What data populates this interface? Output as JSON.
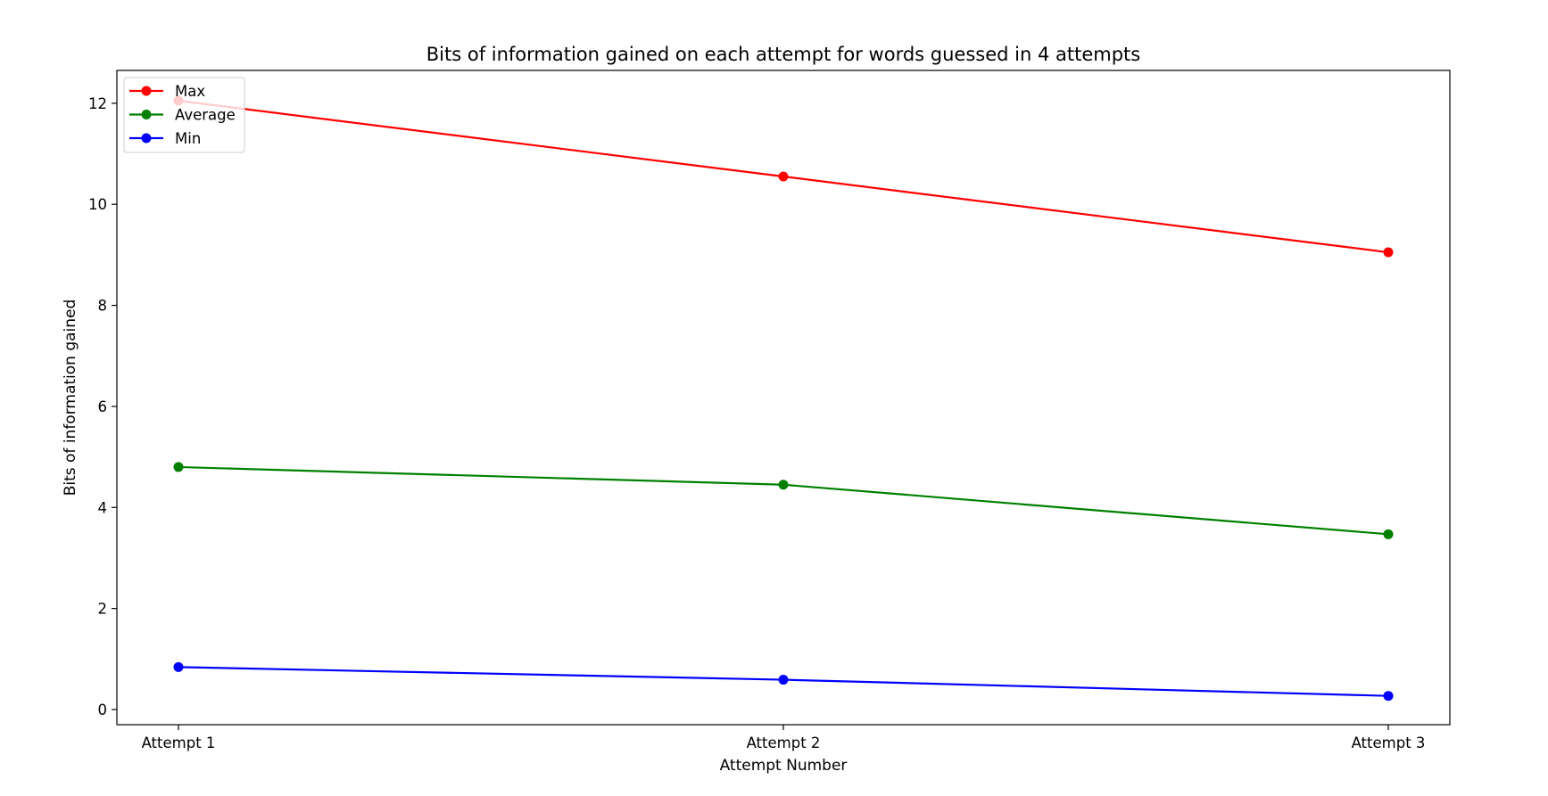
{
  "chart_data": {
    "type": "line",
    "title": "Bits of information gained on each attempt for words guessed in 4 attempts",
    "xlabel": "Attempt Number",
    "ylabel": "Bits of information gained",
    "categories": [
      "Attempt 1",
      "Attempt 2",
      "Attempt 3"
    ],
    "y_ticks": [
      0,
      2,
      4,
      6,
      8,
      10,
      12
    ],
    "ylim": [
      -0.3,
      12.65
    ],
    "grid": false,
    "legend_position": "top-left",
    "marker": "circle",
    "series": [
      {
        "name": "Max",
        "color": "#ff0000",
        "values": [
          12.05,
          10.55,
          9.05
        ]
      },
      {
        "name": "Average",
        "color": "#008000",
        "values": [
          4.8,
          4.45,
          3.47
        ]
      },
      {
        "name": "Min",
        "color": "#0000ff",
        "values": [
          0.84,
          0.59,
          0.27
        ]
      }
    ]
  }
}
